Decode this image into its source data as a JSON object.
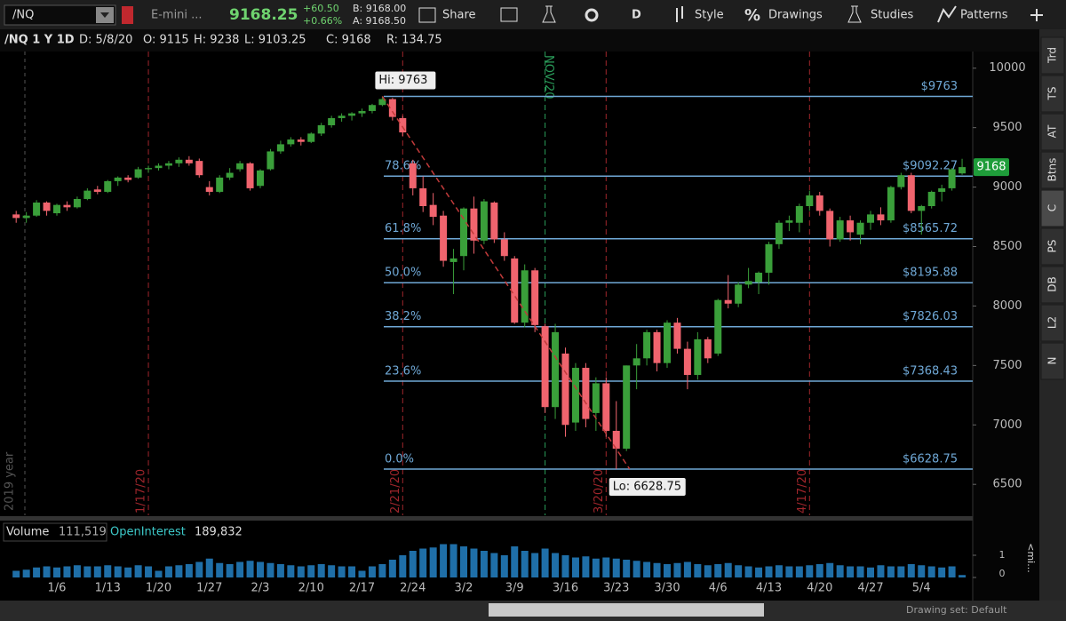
{
  "toolbar": {
    "symbol": "/NQ",
    "description": "E-mini ...",
    "last": "9168.25",
    "change": "+60.50",
    "change_pct": "+0.66%",
    "bid": "B: 9168.00",
    "ask": "A: 9168.50",
    "share": "Share",
    "period": "D",
    "style": "Style",
    "drawings": "Drawings",
    "studies": "Studies",
    "patterns": "Patterns"
  },
  "chart_header": {
    "title": "/NQ 1 Y 1D",
    "date": "D: 5/8/20",
    "open": "O: 9115",
    "high": "H: 9238",
    "low": "L: 9103.25",
    "close": "C: 9168",
    "range": "R: 134.75"
  },
  "side_tabs": [
    "Trd",
    "TS",
    "AT",
    "Btns",
    "C",
    "PS",
    "DB",
    "L2",
    "N"
  ],
  "chart_data": [
    {
      "type": "candlestick",
      "up_color": "#3a9f3a",
      "down_color": "#f0646e",
      "categories": [
        null,
        null,
        null,
        null,
        "1/6",
        null,
        null,
        null,
        null,
        "1/13",
        null,
        null,
        null,
        null,
        "1/20",
        null,
        null,
        null,
        null,
        "1/27",
        null,
        null,
        null,
        null,
        "2/3",
        null,
        null,
        null,
        null,
        "2/10",
        null,
        null,
        null,
        null,
        "2/17",
        null,
        null,
        null,
        null,
        "2/24",
        null,
        null,
        null,
        null,
        "3/2",
        null,
        null,
        null,
        null,
        "3/9",
        null,
        null,
        null,
        null,
        "3/16",
        null,
        null,
        null,
        null,
        "3/23",
        null,
        null,
        null,
        null,
        "3/30",
        null,
        null,
        null,
        null,
        "4/6",
        null,
        null,
        null,
        null,
        "4/13",
        null,
        null,
        null,
        null,
        "4/20",
        null,
        null,
        null,
        null,
        "4/27",
        null,
        null,
        null,
        null,
        "5/4",
        null,
        null,
        null,
        null
      ],
      "ohlc": [
        [
          8770,
          8800,
          8700,
          8740
        ],
        [
          8740,
          8790,
          8700,
          8760
        ],
        [
          8760,
          8890,
          8750,
          8870
        ],
        [
          8870,
          8880,
          8760,
          8800
        ],
        [
          8780,
          8860,
          8760,
          8850
        ],
        [
          8850,
          8880,
          8800,
          8830
        ],
        [
          8830,
          8920,
          8820,
          8900
        ],
        [
          8900,
          8990,
          8890,
          8970
        ],
        [
          8980,
          9010,
          8940,
          8960
        ],
        [
          8960,
          9060,
          8950,
          9050
        ],
        [
          9050,
          9090,
          9010,
          9080
        ],
        [
          9080,
          9100,
          9040,
          9060
        ],
        [
          9080,
          9170,
          9070,
          9150
        ],
        [
          9150,
          9180,
          9120,
          9160
        ],
        [
          9160,
          9200,
          9140,
          9180
        ],
        [
          9180,
          9220,
          9150,
          9200
        ],
        [
          9200,
          9250,
          9170,
          9230
        ],
        [
          9230,
          9260,
          9180,
          9200
        ],
        [
          9220,
          9240,
          9080,
          9100
        ],
        [
          9000,
          9050,
          8930,
          8960
        ],
        [
          8960,
          9100,
          8950,
          9080
        ],
        [
          9080,
          9160,
          9060,
          9120
        ],
        [
          9150,
          9220,
          9130,
          9200
        ],
        [
          9200,
          9210,
          8970,
          8990
        ],
        [
          9010,
          9150,
          8990,
          9140
        ],
        [
          9150,
          9320,
          9140,
          9300
        ],
        [
          9300,
          9390,
          9280,
          9360
        ],
        [
          9360,
          9420,
          9340,
          9400
        ],
        [
          9400,
          9420,
          9350,
          9380
        ],
        [
          9380,
          9460,
          9370,
          9450
        ],
        [
          9450,
          9540,
          9430,
          9520
        ],
        [
          9520,
          9600,
          9500,
          9580
        ],
        [
          9580,
          9620,
          9550,
          9600
        ],
        [
          9600,
          9630,
          9560,
          9620
        ],
        [
          9620,
          9660,
          9590,
          9640
        ],
        [
          9640,
          9700,
          9620,
          9690
        ],
        [
          9690,
          9763,
          9680,
          9740
        ],
        [
          9740,
          9750,
          9560,
          9590
        ],
        [
          9580,
          9600,
          9430,
          9460
        ],
        [
          9200,
          9230,
          8930,
          8990
        ],
        [
          8990,
          9090,
          8790,
          8840
        ],
        [
          8850,
          8950,
          8680,
          8750
        ],
        [
          8760,
          8800,
          8330,
          8380
        ],
        [
          8370,
          8480,
          8100,
          8400
        ],
        [
          8420,
          8830,
          8300,
          8820
        ],
        [
          8820,
          8920,
          8440,
          8550
        ],
        [
          8550,
          8900,
          8520,
          8880
        ],
        [
          8870,
          8880,
          8530,
          8560
        ],
        [
          8560,
          8620,
          8380,
          8420
        ],
        [
          8400,
          8420,
          7850,
          7860
        ],
        [
          7860,
          8350,
          7820,
          8300
        ],
        [
          8300,
          8320,
          7780,
          7840
        ],
        [
          7830,
          7850,
          7100,
          7150
        ],
        [
          7150,
          7850,
          7050,
          7780
        ],
        [
          7600,
          7650,
          6900,
          7000
        ],
        [
          7020,
          7520,
          6950,
          7480
        ],
        [
          7480,
          7520,
          6980,
          7050
        ],
        [
          7100,
          7400,
          6950,
          7350
        ],
        [
          7350,
          7400,
          6900,
          6950
        ],
        [
          6950,
          7200,
          6628.75,
          6800
        ],
        [
          6800,
          7500,
          6780,
          7500
        ],
        [
          7500,
          7680,
          7300,
          7560
        ],
        [
          7560,
          7800,
          7500,
          7780
        ],
        [
          7780,
          7800,
          7450,
          7520
        ],
        [
          7520,
          7880,
          7480,
          7860
        ],
        [
          7860,
          7900,
          7600,
          7640
        ],
        [
          7640,
          7700,
          7300,
          7420
        ],
        [
          7420,
          7780,
          7380,
          7720
        ],
        [
          7720,
          7740,
          7520,
          7560
        ],
        [
          7600,
          8060,
          7580,
          8050
        ],
        [
          8050,
          8260,
          7980,
          8020
        ],
        [
          8020,
          8200,
          7990,
          8180
        ],
        [
          8180,
          8320,
          8150,
          8210
        ],
        [
          8200,
          8290,
          8100,
          8280
        ],
        [
          8280,
          8540,
          8180,
          8520
        ],
        [
          8520,
          8720,
          8480,
          8700
        ],
        [
          8700,
          8760,
          8630,
          8720
        ],
        [
          8700,
          8860,
          8620,
          8840
        ],
        [
          8840,
          8970,
          8800,
          8930
        ],
        [
          8930,
          8960,
          8760,
          8800
        ],
        [
          8800,
          8820,
          8500,
          8560
        ],
        [
          8560,
          8750,
          8540,
          8720
        ],
        [
          8720,
          8760,
          8550,
          8620
        ],
        [
          8600,
          8720,
          8520,
          8700
        ],
        [
          8700,
          8800,
          8640,
          8770
        ],
        [
          8770,
          8830,
          8680,
          8720
        ],
        [
          8720,
          9010,
          8700,
          9000
        ],
        [
          9000,
          9120,
          8980,
          9100
        ],
        [
          9100,
          9120,
          8780,
          8800
        ],
        [
          8800,
          8850,
          8600,
          8840
        ],
        [
          8840,
          8970,
          8820,
          8960
        ],
        [
          8960,
          9020,
          8880,
          8990
        ],
        [
          8990,
          9160,
          8970,
          9150
        ],
        [
          9115,
          9238,
          9103.25,
          9168
        ]
      ],
      "ylim": [
        6240,
        10140
      ],
      "yticks": [
        6500,
        7000,
        7500,
        8000,
        8500,
        9000,
        9500,
        10000
      ],
      "last_price": 9168,
      "last_color": "#1f9d3a",
      "fib_color": "#6fa8d6",
      "fib_levels": [
        {
          "price": {
            "value": 9763,
            "label": "$9763"
          }
        },
        {
          "label": "78.6%",
          "price": {
            "value": 9092.27,
            "label": "$9092.27"
          }
        },
        {
          "label": "61.8%",
          "price": {
            "value": 8565.72,
            "label": "$8565.72"
          }
        },
        {
          "label": "50.0%",
          "price": {
            "value": 8195.88,
            "label": "$8195.88"
          }
        },
        {
          "label": "38.2%",
          "price": {
            "value": 7826.03,
            "label": "$7826.03"
          }
        },
        {
          "label": "23.6%",
          "price": {
            "value": 7368.43,
            "label": "$7368.43"
          }
        },
        {
          "label": "0.0%",
          "price": {
            "value": 6628.75,
            "label": "$6628.75"
          }
        }
      ],
      "annotations": [
        {
          "text": "Hi: 9763",
          "value": 9763
        },
        {
          "text": "Lo: 6628.75",
          "value": 6628.75
        }
      ],
      "year_line": "2019 year",
      "event_lines": [
        {
          "label": "1/17/20",
          "color": "#a0262c"
        },
        {
          "label": "2/21/20",
          "color": "#a0262c"
        },
        {
          "label": "NOV/20",
          "color": "#2a9d5a"
        },
        {
          "label": "3/20/20",
          "color": "#a0262c"
        },
        {
          "label": "4/17/20",
          "color": "#a0262c"
        }
      ]
    },
    {
      "type": "bar",
      "title": "Volume",
      "volume_value": "111,519",
      "oi_title": "OpenInterest",
      "oi_value": "189,832",
      "unit_label": "<mi...",
      "color": "#1f6fa8",
      "values": [
        0.3,
        0.35,
        0.45,
        0.5,
        0.45,
        0.5,
        0.55,
        0.5,
        0.5,
        0.55,
        0.5,
        0.45,
        0.55,
        0.5,
        0.3,
        0.5,
        0.55,
        0.6,
        0.7,
        0.85,
        0.65,
        0.6,
        0.7,
        0.75,
        0.7,
        0.65,
        0.6,
        0.55,
        0.5,
        0.55,
        0.6,
        0.55,
        0.5,
        0.5,
        0.3,
        0.5,
        0.6,
        0.8,
        1.0,
        1.2,
        1.3,
        1.35,
        1.5,
        1.5,
        1.4,
        1.3,
        1.2,
        1.1,
        1.0,
        1.4,
        1.2,
        1.1,
        1.3,
        1.1,
        1.0,
        0.9,
        0.95,
        0.85,
        0.9,
        0.85,
        0.8,
        0.75,
        0.7,
        0.65,
        0.6,
        0.65,
        0.7,
        0.6,
        0.55,
        0.6,
        0.65,
        0.55,
        0.5,
        0.45,
        0.5,
        0.55,
        0.5,
        0.5,
        0.55,
        0.6,
        0.65,
        0.55,
        0.5,
        0.5,
        0.45,
        0.55,
        0.5,
        0.5,
        0.6,
        0.55,
        0.5,
        0.45,
        0.5,
        0.11
      ],
      "ylim": [
        0,
        1.6
      ],
      "yticks": [
        0,
        1
      ]
    }
  ],
  "footer": {
    "drawing_set": "Drawing set: Default"
  }
}
